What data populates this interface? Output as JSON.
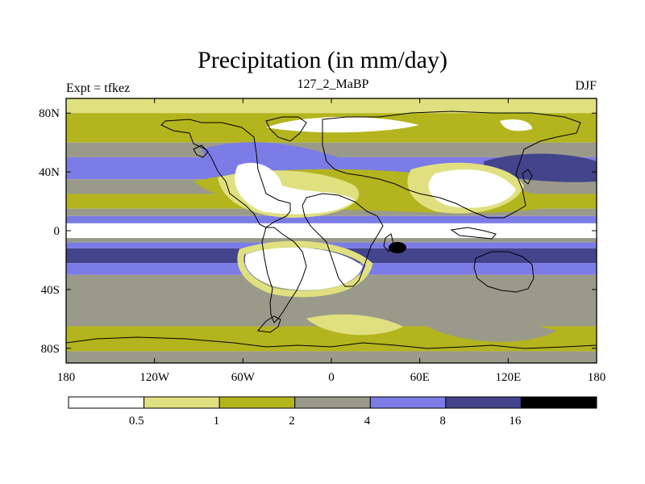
{
  "chart_data": {
    "type": "heatmap",
    "title": "Precipitation (in mm/day)",
    "subtitle_left": "Expt = tfkez",
    "subtitle_center": "127_2_MaBP",
    "subtitle_right": "DJF",
    "x_ticks": [
      "180",
      "120W",
      "60W",
      "0",
      "60E",
      "120E",
      "180"
    ],
    "x_values": [
      -180,
      -120,
      -60,
      0,
      60,
      120,
      180
    ],
    "y_ticks": [
      "80N",
      "40N",
      "0",
      "40S",
      "80S"
    ],
    "y_values": [
      80,
      40,
      0,
      -40,
      -80
    ],
    "xlim": [
      -180,
      180
    ],
    "ylim": [
      -90,
      90
    ],
    "colorbar": {
      "levels": [
        "0.5",
        "1",
        "2",
        "4",
        "8",
        "16"
      ],
      "colors": [
        "#ffffff",
        "#e0e080",
        "#b4b41e",
        "#9a9a8a",
        "#7c7ce6",
        "#44448c",
        "#000000"
      ]
    },
    "zonal_bands_mmday": [
      {
        "lat": [
          80,
          90
        ],
        "value": 0.75
      },
      {
        "lat": [
          60,
          80
        ],
        "value": 1.5
      },
      {
        "lat": [
          50,
          60
        ],
        "value": 3
      },
      {
        "lat": [
          35,
          50
        ],
        "value": 6
      },
      {
        "lat": [
          25,
          35
        ],
        "value": 3
      },
      {
        "lat": [
          15,
          25
        ],
        "value": 1.5
      },
      {
        "lat": [
          10,
          15
        ],
        "value": 3
      },
      {
        "lat": [
          5,
          10
        ],
        "value": 6
      },
      {
        "lat": [
          -5,
          5
        ],
        "value": 0.25
      },
      {
        "lat": [
          -8,
          -5
        ],
        "value": 3
      },
      {
        "lat": [
          -12,
          -8
        ],
        "value": 6
      },
      {
        "lat": [
          -22,
          -12
        ],
        "value": 12
      },
      {
        "lat": [
          -30,
          -22
        ],
        "value": 6
      },
      {
        "lat": [
          -65,
          -30
        ],
        "value": 3
      },
      {
        "lat": [
          -82,
          -65
        ],
        "value": 1.5
      },
      {
        "lat": [
          -90,
          -82
        ],
        "value": 3
      }
    ]
  }
}
